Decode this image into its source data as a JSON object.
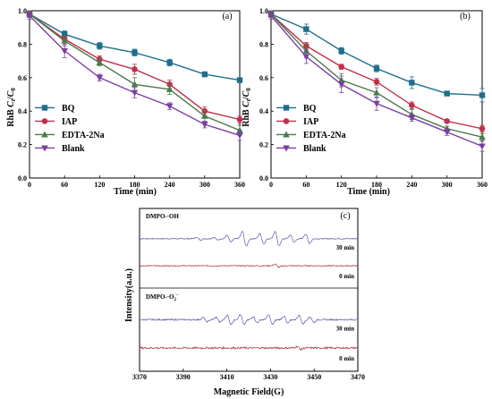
{
  "chart_data": [
    {
      "panel_label": "(a)",
      "type": "line",
      "xlabel": "Time (min)",
      "ylabel": "RhB C/C0",
      "ylabel_parts": {
        "prefix": "RhB ",
        "c1": "C",
        "sub1": "t",
        "slash": "/",
        "c2": "C",
        "sub2": "0"
      },
      "x": [
        0,
        60,
        120,
        180,
        240,
        300,
        360
      ],
      "xlim": [
        0,
        360
      ],
      "ylim": [
        0.0,
        1.0
      ],
      "xticks": [
        "0",
        "60",
        "120",
        "180",
        "240",
        "300",
        "360"
      ],
      "yticks": [
        "0.0",
        "0.2",
        "0.4",
        "0.6",
        "0.8",
        "1.0"
      ],
      "legend_position": "bottom-left",
      "series": [
        {
          "name": "BQ",
          "color": "#1f6e8c",
          "marker": "square",
          "values": [
            0.98,
            0.86,
            0.79,
            0.75,
            0.69,
            0.62,
            0.585
          ],
          "errors": [
            0.02,
            0.02,
            0.02,
            0.02,
            0.02,
            0.015,
            0.01
          ]
        },
        {
          "name": "IAP",
          "color": "#c0304a",
          "marker": "circle",
          "values": [
            0.98,
            0.83,
            0.71,
            0.65,
            0.56,
            0.4,
            0.35
          ],
          "errors": [
            0.02,
            0.02,
            0.02,
            0.03,
            0.025,
            0.025,
            0.02
          ]
        },
        {
          "name": "EDTA-2Na",
          "color": "#4b7a4b",
          "marker": "triangle-up",
          "values": [
            0.98,
            0.82,
            0.69,
            0.56,
            0.53,
            0.37,
            0.285
          ],
          "errors": [
            0.02,
            0.03,
            0.02,
            0.04,
            0.03,
            0.03,
            0.03
          ]
        },
        {
          "name": "Blank",
          "color": "#7b3fa0",
          "marker": "triangle-down",
          "values": [
            0.97,
            0.76,
            0.6,
            0.51,
            0.43,
            0.32,
            0.255
          ],
          "errors": [
            0.02,
            0.04,
            0.02,
            0.03,
            0.02,
            0.02,
            0.03
          ]
        }
      ]
    },
    {
      "panel_label": "(b)",
      "type": "line",
      "xlabel": "Time (min)",
      "ylabel": "RhB C/C0",
      "ylabel_parts": {
        "prefix": "RhB ",
        "c1": "C",
        "sub1": "t",
        "slash": "/",
        "c2": "C",
        "sub2": "0"
      },
      "x": [
        0,
        60,
        120,
        180,
        240,
        300,
        360
      ],
      "xlim": [
        0,
        360
      ],
      "ylim": [
        0.0,
        1.0
      ],
      "xticks": [
        "0",
        "60",
        "120",
        "180",
        "240",
        "300",
        "360"
      ],
      "yticks": [
        "0.0",
        "0.2",
        "0.4",
        "0.6",
        "0.8",
        "1.0"
      ],
      "legend_position": "bottom-left",
      "series": [
        {
          "name": "BQ",
          "color": "#1f6e8c",
          "marker": "square",
          "values": [
            0.98,
            0.89,
            0.76,
            0.655,
            0.57,
            0.505,
            0.495
          ],
          "errors": [
            0.02,
            0.03,
            0.02,
            0.02,
            0.035,
            0.01,
            0.04
          ]
        },
        {
          "name": "IAP",
          "color": "#c0304a",
          "marker": "circle",
          "values": [
            0.98,
            0.79,
            0.665,
            0.575,
            0.435,
            0.34,
            0.295
          ],
          "errors": [
            0.02,
            0.02,
            0.015,
            0.02,
            0.02,
            0.01,
            0.02
          ]
        },
        {
          "name": "EDTA-2Na",
          "color": "#4b7a4b",
          "marker": "triangle-up",
          "values": [
            0.98,
            0.76,
            0.585,
            0.51,
            0.38,
            0.295,
            0.245
          ],
          "errors": [
            0.02,
            0.04,
            0.04,
            0.03,
            0.03,
            0.015,
            0.02
          ]
        },
        {
          "name": "Blank",
          "color": "#7b3fa0",
          "marker": "triangle-down",
          "values": [
            0.97,
            0.725,
            0.56,
            0.445,
            0.36,
            0.275,
            0.19
          ],
          "errors": [
            0.02,
            0.04,
            0.05,
            0.04,
            0.02,
            0.02,
            0.03
          ]
        }
      ]
    },
    {
      "panel_label": "(c)",
      "type": "line",
      "xlabel": "Magnetic Field(G)",
      "ylabel": "Intensity(a.u.)",
      "xlim": [
        3370,
        3470
      ],
      "xticks": [
        3370,
        3390,
        3410,
        3430,
        3450,
        3470
      ],
      "spectra": [
        {
          "panel_name_prefix": "DMPO-·OH",
          "panel_name_suffix": "",
          "traces": [
            {
              "label": "30 min",
              "color": "#5a5aa8",
              "baseline": 0.6,
              "noise": 0.5,
              "peaks": [
                [
                  3397,
                  1.2
                ],
                [
                  3405,
                  1.3
                ],
                [
                  3411,
                  3.2
                ],
                [
                  3418,
                  7.0
                ],
                [
                  3426,
                  4.8
                ],
                [
                  3433,
                  6.8
                ],
                [
                  3440,
                  3.2
                ],
                [
                  3447,
                  4.4
                ]
              ]
            },
            {
              "label": "0 min",
              "color": "#a83a4a",
              "baseline": 0.6,
              "noise": 0.55,
              "peaks": [
                [
                  3433,
                  1.6
                ]
              ]
            }
          ]
        },
        {
          "panel_name_prefix": "DMPO-·O",
          "panel_name_suffix": "2",
          "panel_name_sup": "−",
          "traces": [
            {
              "label": "30 min",
              "color": "#5a5aa8",
              "baseline": 0.4,
              "noise": 0.7,
              "peaks": [
                [
                  3400,
                  2.0
                ],
                [
                  3406,
                  2.2
                ],
                [
                  3411,
                  4.2
                ],
                [
                  3417,
                  4.6
                ],
                [
                  3423,
                  3.0
                ],
                [
                  3430,
                  4.4
                ],
                [
                  3437,
                  3.4
                ],
                [
                  3444,
                  4.0
                ],
                [
                  3449,
                  2.6
                ]
              ]
            },
            {
              "label": "0 min",
              "color": "#a83a4a",
              "baseline": 0.4,
              "noise": 1.0,
              "peaks": [
                [
                  3443,
                  1.4
                ]
              ]
            }
          ]
        }
      ]
    }
  ]
}
